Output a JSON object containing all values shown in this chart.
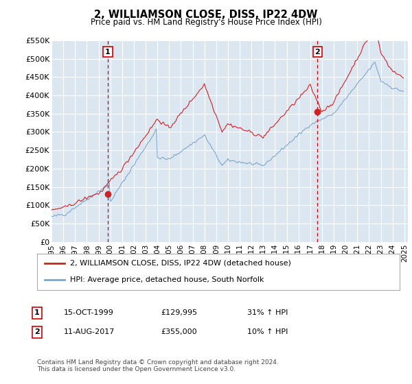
{
  "title": "2, WILLIAMSON CLOSE, DISS, IP22 4DW",
  "subtitle": "Price paid vs. HM Land Registry's House Price Index (HPI)",
  "ylim": [
    0,
    550000
  ],
  "xlim": [
    1995.0,
    2025.3
  ],
  "yticks": [
    0,
    50000,
    100000,
    150000,
    200000,
    250000,
    300000,
    350000,
    400000,
    450000,
    500000,
    550000
  ],
  "ytick_labels": [
    "£0",
    "£50K",
    "£100K",
    "£150K",
    "£200K",
    "£250K",
    "£300K",
    "£350K",
    "£400K",
    "£450K",
    "£500K",
    "£550K"
  ],
  "background_color": "#ffffff",
  "plot_bg_color": "#dce6f1",
  "grid_color": "#ffffff",
  "hpi_color": "#7ba7cc",
  "price_color": "#cc2222",
  "vline_color": "#cc0000",
  "transaction1_x": 1999.79,
  "transaction1_y": 129995,
  "transaction1_label": "1",
  "transaction2_x": 2017.61,
  "transaction2_y": 355000,
  "transaction2_label": "2",
  "legend_line1": "2, WILLIAMSON CLOSE, DISS, IP22 4DW (detached house)",
  "legend_line2": "HPI: Average price, detached house, South Norfolk",
  "table_row1": [
    "1",
    "15-OCT-1999",
    "£129,995",
    "31% ↑ HPI"
  ],
  "table_row2": [
    "2",
    "11-AUG-2017",
    "£355,000",
    "10% ↑ HPI"
  ],
  "footnote": "Contains HM Land Registry data © Crown copyright and database right 2024.\nThis data is licensed under the Open Government Licence v3.0."
}
